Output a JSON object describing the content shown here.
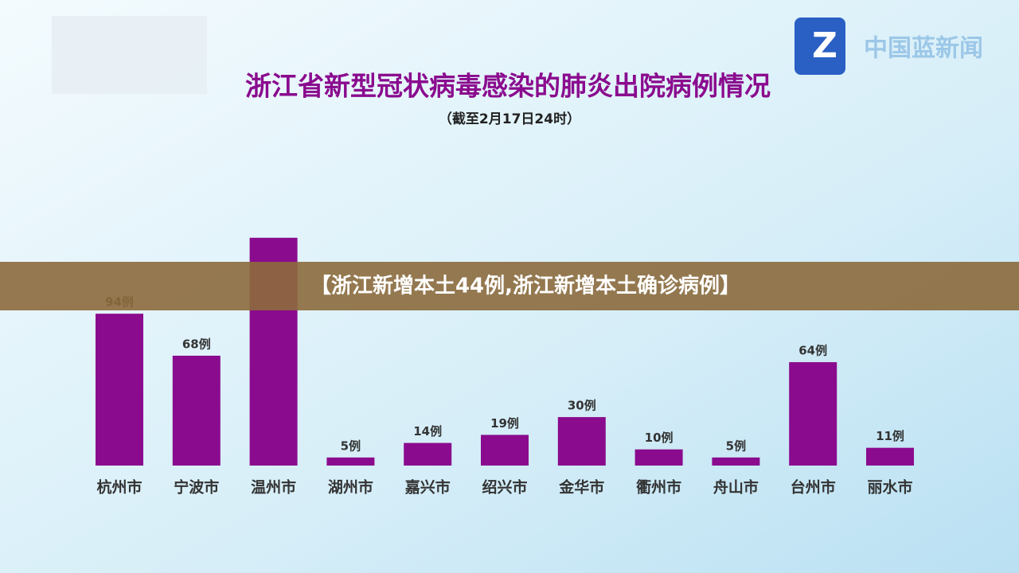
{
  "logo_text": "中国蓝新闻",
  "banner": "【浙江新增本土44例,浙江新增本土确诊病例】",
  "chart_data": {
    "type": "bar",
    "title": "浙江省新型冠状病毒感染的肺炎出院病例情况",
    "subtitle": "（截至2月17日24时）",
    "categories": [
      "杭州市",
      "宁波市",
      "温州市",
      "湖州市",
      "嘉兴市",
      "绍兴市",
      "金华市",
      "衢州市",
      "舟山市",
      "台州市",
      "丽水市"
    ],
    "values": [
      94,
      68,
      141,
      5,
      14,
      19,
      30,
      10,
      5,
      64,
      11
    ],
    "value_labels": [
      "94例",
      "68例",
      null,
      "5例",
      "14例",
      "19例",
      "30例",
      "10例",
      "5例",
      "64例",
      "11例"
    ],
    "color": "#8a0b8e"
  }
}
